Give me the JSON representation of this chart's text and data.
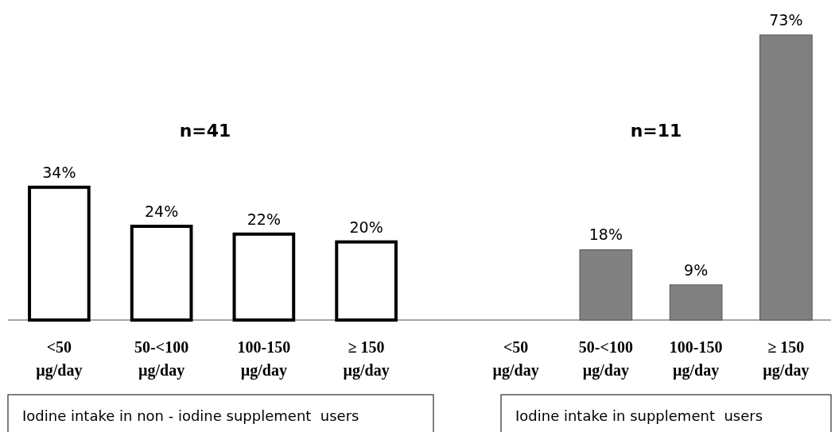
{
  "chart_data": [
    {
      "type": "bar",
      "title": "n=41",
      "categories": [
        "<50 µg/day",
        "50-<100 µg/day",
        "100-150 µg/day",
        "≥ 150 µg/day"
      ],
      "values": [
        34,
        24,
        22,
        20
      ],
      "value_labels": [
        "34%",
        "24%",
        "22%",
        "20%"
      ],
      "color": "#ffffff",
      "xlabel": "Iodine intake in non - iodine supplement  users"
    },
    {
      "type": "bar",
      "title": "n=11",
      "categories": [
        "<50 µg/day",
        "50-<100 µg/day",
        "100-150 µg/day",
        "≥ 150 µg/day"
      ],
      "values": [
        null,
        18,
        9,
        73
      ],
      "value_labels": [
        null,
        "18%",
        "9%",
        "73%"
      ],
      "color": "#808080",
      "xlabel": "Iodine intake in supplement  users"
    }
  ]
}
